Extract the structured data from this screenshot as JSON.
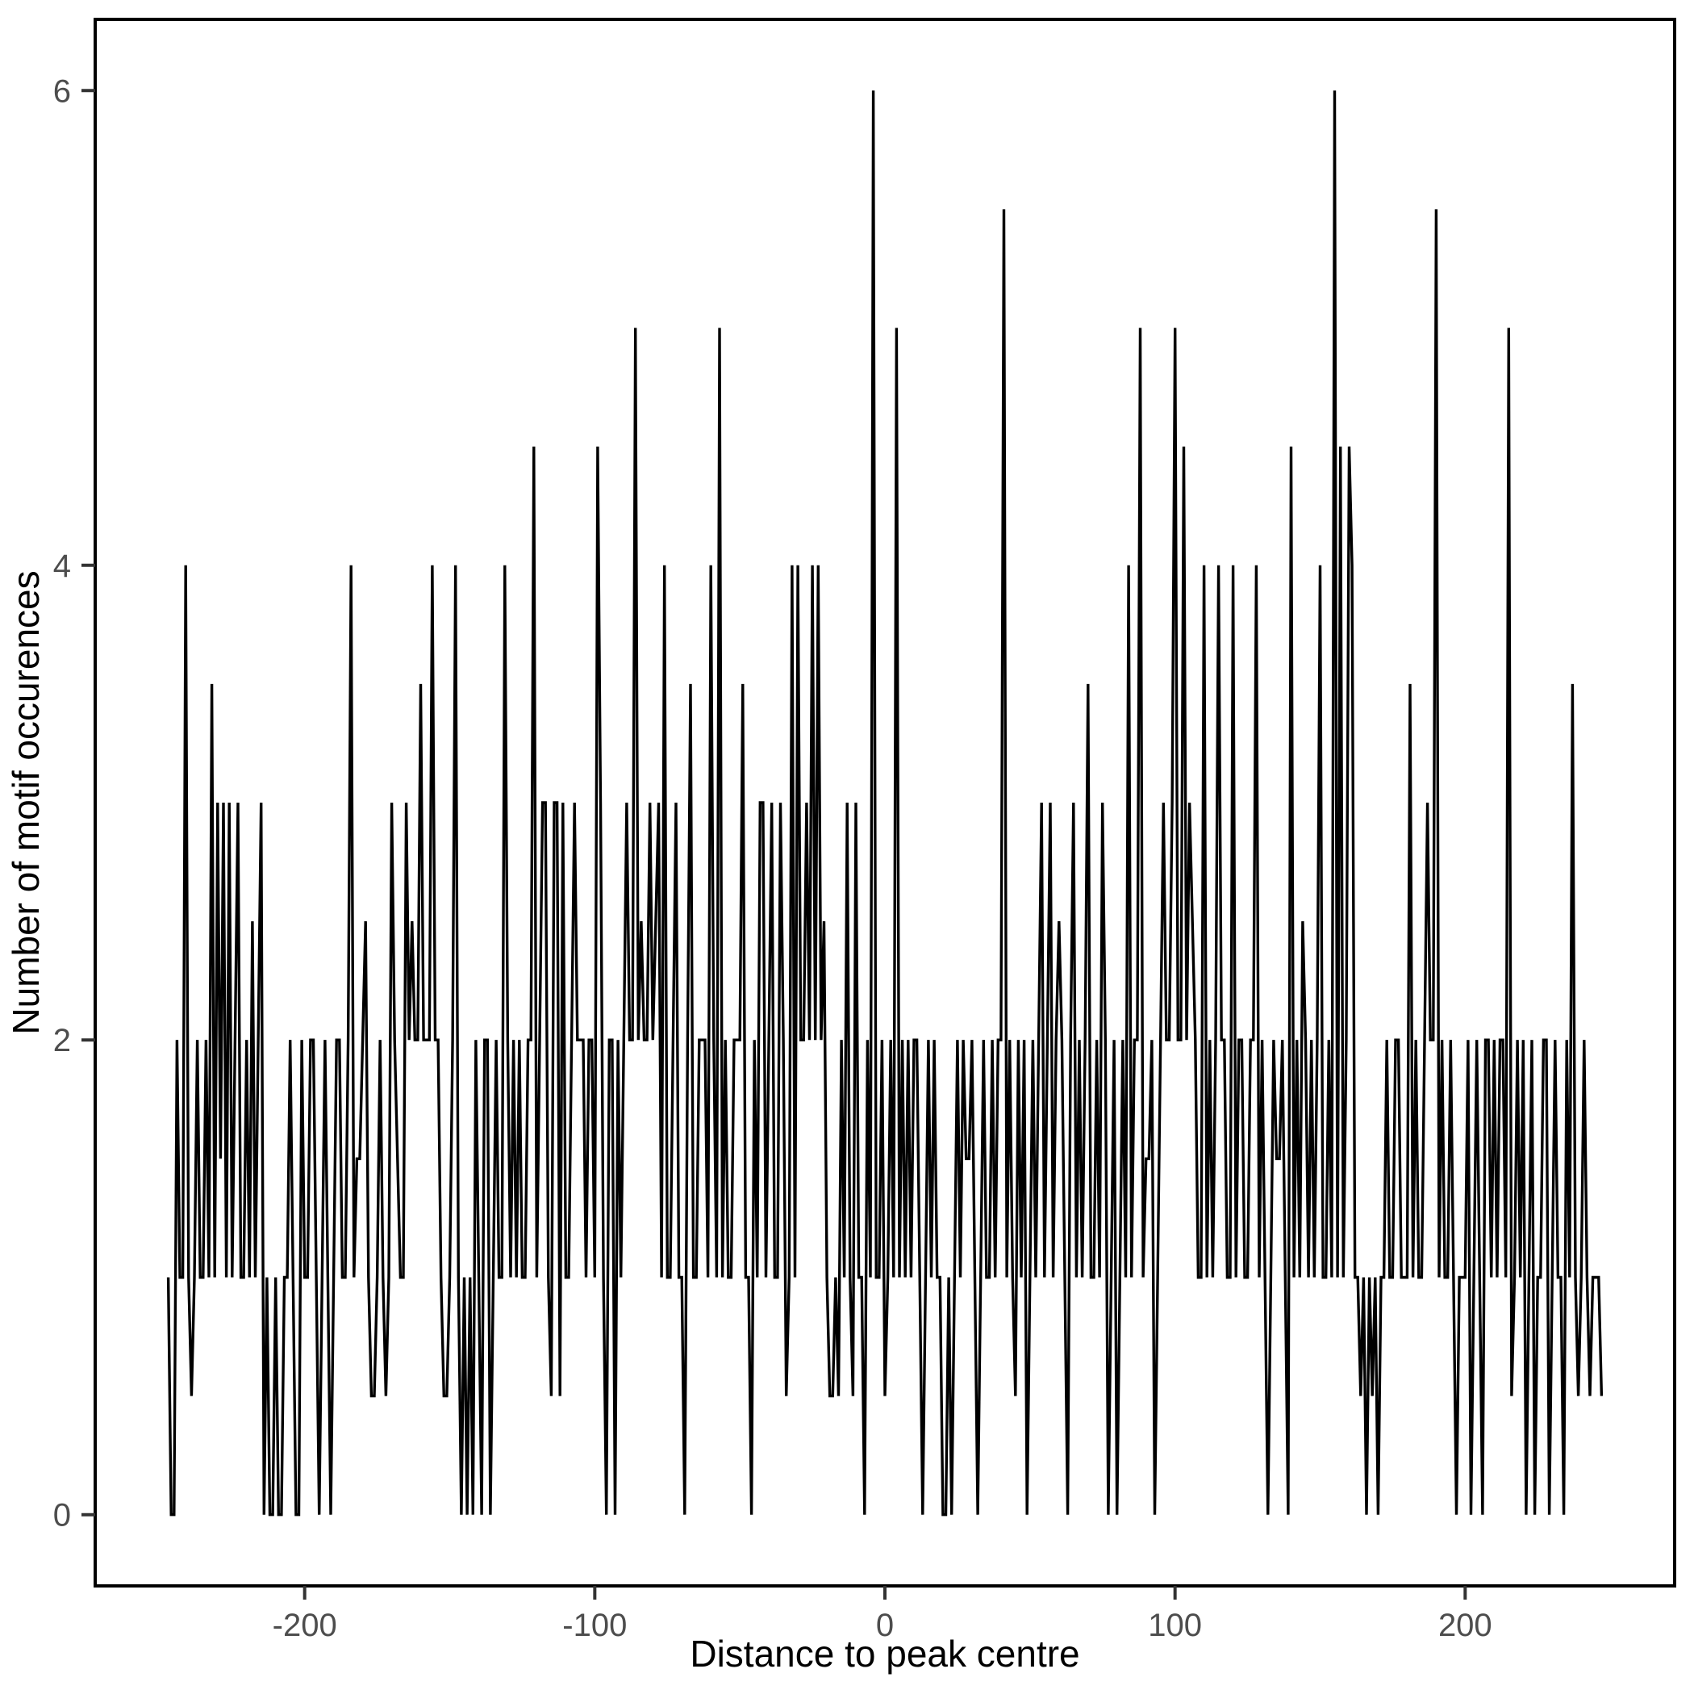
{
  "chart_data": {
    "type": "line",
    "title": "",
    "xlabel": "Distance to peak centre",
    "ylabel": "Number of motif occurences",
    "line_color": "#000000",
    "background_color": "#ffffff",
    "panel_border_color": "#000000",
    "tick_label_color": "#4d4d4d",
    "tick_mark_color": "#333333",
    "grid": "off",
    "legend": "none",
    "xlim": [
      -272.2,
      272.2
    ],
    "ylim": [
      -0.3,
      6.3
    ],
    "x_ticks": [
      -200,
      -100,
      0,
      100,
      200
    ],
    "x_tick_labels": [
      "-200",
      "-100",
      "0",
      "100",
      "200"
    ],
    "y_ticks": [
      0,
      2,
      4,
      6
    ],
    "y_tick_labels": [
      "0",
      "2",
      "4",
      "6"
    ],
    "x_start": -247,
    "x_step": 1,
    "values": [
      1,
      0,
      0,
      2,
      1,
      1,
      4,
      1,
      0.5,
      1,
      2,
      1,
      1,
      2,
      1,
      3.5,
      1,
      3,
      1.5,
      3,
      1,
      3,
      1,
      2,
      3,
      1,
      1,
      2,
      1,
      2.5,
      1,
      2,
      3,
      0,
      1,
      0,
      0,
      1,
      0,
      0,
      1,
      1,
      2,
      1,
      0,
      0,
      2,
      1,
      1,
      2,
      2,
      1,
      0,
      1,
      2,
      1,
      0,
      1,
      2,
      2,
      1,
      1,
      2,
      4,
      1,
      1.5,
      1.5,
      2,
      2.5,
      1,
      0.5,
      0.5,
      1,
      2,
      1,
      0.5,
      1,
      3,
      2,
      1.5,
      1,
      1,
      3,
      2,
      2.5,
      2,
      2,
      3.5,
      2,
      2,
      2,
      4,
      2,
      2,
      1,
      0.5,
      0.5,
      1,
      2,
      4,
      1,
      0,
      1,
      0,
      1,
      0,
      2,
      1,
      0,
      2,
      2,
      0,
      1,
      2,
      1,
      1,
      4,
      2,
      1,
      2,
      1,
      2,
      1,
      1,
      2,
      2,
      4.5,
      1,
      2,
      3,
      3,
      1,
      0.5,
      3,
      3,
      0.5,
      3,
      1,
      1,
      2,
      3,
      2,
      2,
      2,
      1,
      2,
      2,
      1,
      4.5,
      3,
      1,
      0,
      2,
      2,
      0,
      2,
      1,
      2,
      3,
      2,
      2,
      5,
      2,
      2.5,
      2,
      2,
      3,
      2,
      2.5,
      3,
      1,
      4,
      1,
      1,
      2,
      3,
      1,
      1,
      0,
      2,
      3.5,
      1,
      1,
      2,
      2,
      2,
      1,
      4,
      2,
      1,
      5,
      1,
      2,
      1,
      1,
      2,
      2,
      2,
      3.5,
      1,
      1,
      0,
      2,
      1,
      3,
      3,
      1,
      2,
      3,
      1,
      1,
      3,
      2,
      0.5,
      1,
      4,
      1,
      4,
      2,
      2,
      3,
      2,
      4,
      2,
      4,
      2,
      2.5,
      1,
      0.5,
      0.5,
      1,
      0.5,
      2,
      1,
      3,
      1,
      0.5,
      3,
      1,
      1,
      0,
      2,
      1,
      6,
      1,
      1,
      2,
      0.5,
      1,
      2,
      1,
      5,
      1,
      2,
      1,
      2,
      1,
      2,
      2,
      1,
      0,
      1,
      2,
      1,
      2,
      1,
      1,
      0,
      0,
      1,
      0,
      1,
      2,
      1,
      2,
      1.5,
      1.5,
      2,
      1,
      0,
      1,
      2,
      1,
      1,
      2,
      1,
      2,
      2,
      5.5,
      1,
      2,
      1,
      0.5,
      2,
      1,
      2,
      0,
      1,
      2,
      1,
      2,
      3,
      1,
      2,
      3,
      1,
      2,
      2.5,
      2,
      1,
      0,
      2,
      3,
      1,
      2,
      1,
      2,
      3.5,
      1,
      1,
      2,
      1,
      3,
      2,
      0,
      1,
      2,
      0,
      1,
      2,
      1,
      4,
      1,
      2,
      2,
      5,
      1,
      1.5,
      1.5,
      2,
      0,
      1,
      2,
      3,
      2,
      2,
      3,
      5,
      2,
      2,
      4.5,
      2,
      3,
      2.5,
      2,
      1,
      1,
      4,
      1,
      2,
      1,
      2,
      4,
      2,
      2,
      1,
      1,
      4,
      1,
      2,
      2,
      1,
      1,
      2,
      2,
      4,
      1,
      2,
      1,
      0,
      1,
      2,
      1.5,
      1.5,
      2,
      1,
      0,
      4.5,
      1,
      2,
      1,
      2.5,
      2,
      1,
      2,
      1,
      2,
      4,
      1,
      1,
      2,
      1,
      6,
      1,
      4.5,
      1,
      2,
      4.5,
      4,
      1,
      1,
      0.5,
      1,
      0,
      1,
      0.5,
      1,
      0,
      1,
      1,
      2,
      1,
      1,
      2,
      2,
      1,
      1,
      1,
      3.5,
      1,
      2,
      1,
      1,
      2,
      3,
      2,
      2,
      5.5,
      1,
      2,
      1,
      1,
      2,
      1,
      0,
      1,
      1,
      1,
      2,
      0,
      1,
      2,
      1,
      0,
      2,
      2,
      1,
      2,
      1,
      2,
      2,
      1,
      5,
      0.5,
      1,
      2,
      1,
      2,
      0,
      1,
      2,
      0,
      1,
      1,
      2,
      2,
      0,
      1,
      2,
      1,
      1,
      0,
      2,
      1,
      3.5,
      1,
      0.5,
      1,
      2,
      1,
      0.5,
      1,
      1,
      1,
      0.5
    ]
  }
}
